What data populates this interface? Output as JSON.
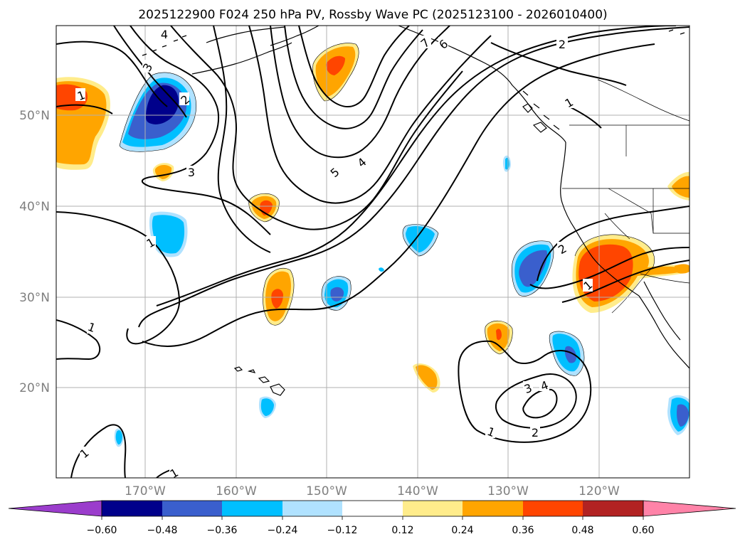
{
  "title": "2025122900 F024 250 hPa PV, Rossby Wave PC (2025123100 - 2026010400)",
  "latitude_labels": [
    "50°N",
    "40°N",
    "30°N",
    "20°N"
  ],
  "longitude_labels": [
    "170°W",
    "160°W",
    "150°W",
    "140°W",
    "130°W",
    "120°W"
  ],
  "colorbar": {
    "tick_labels": [
      "−0.60",
      "−0.48",
      "−0.36",
      "−0.24",
      "−0.12",
      "0.12",
      "0.24",
      "0.36",
      "0.48",
      "0.60"
    ],
    "colors": [
      "#9b3dcc",
      "#00008b",
      "#3a5fcd",
      "#00bfff",
      "#b0e2ff",
      "#ffffff",
      "#ffec8b",
      "#ffa500",
      "#ff4500",
      "#b22222",
      "#ff83a8"
    ]
  },
  "contour_labels": [
    "4",
    "3",
    "2",
    "1",
    "3",
    "1",
    "1",
    "5",
    "4",
    "7",
    "6",
    "2",
    "1",
    "2",
    "1",
    "3",
    "4",
    "1",
    "2",
    "1",
    "1",
    "1"
  ]
}
